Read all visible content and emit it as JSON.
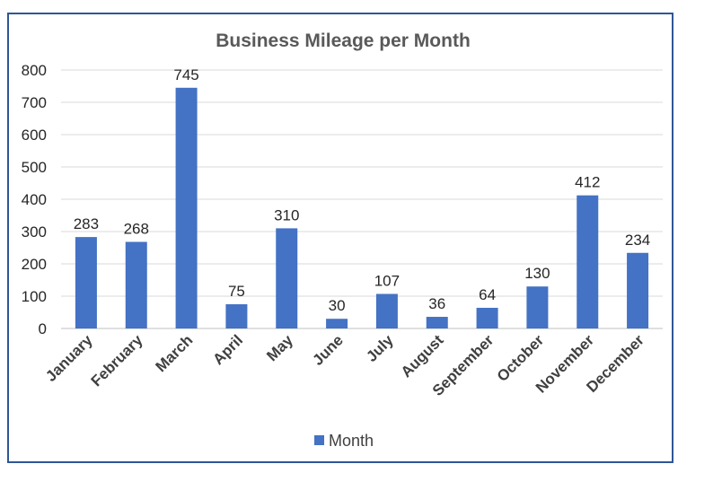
{
  "chart_data": {
    "type": "bar",
    "title": "Business Mileage per Month",
    "categories": [
      "January",
      "February",
      "March",
      "April",
      "May",
      "June",
      "July",
      "August",
      "September",
      "October",
      "November",
      "December"
    ],
    "series": [
      {
        "name": "Month",
        "values": [
          283,
          268,
          745,
          75,
          310,
          30,
          107,
          36,
          64,
          130,
          412,
          234
        ],
        "color": "#4472C4"
      }
    ],
    "ylim": [
      0,
      800
    ],
    "yticks": [
      "0",
      "100",
      "200",
      "300",
      "400",
      "500",
      "600",
      "700",
      "800"
    ],
    "grid": true,
    "legend_position": "bottom",
    "data_labels": true
  },
  "colors": {
    "border": "#2F5597",
    "bar": "#4472C4",
    "grid": "#D9D9D9"
  }
}
